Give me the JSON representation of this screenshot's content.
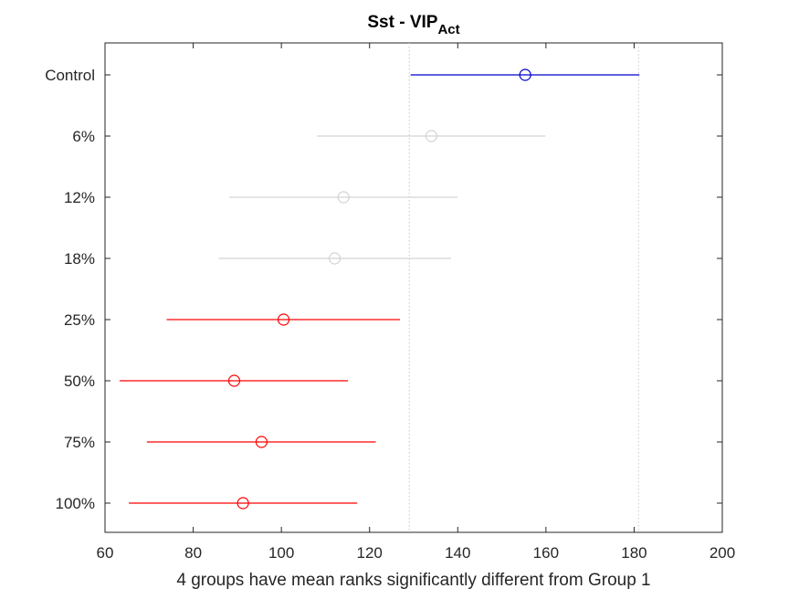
{
  "chart_data": {
    "type": "scatter",
    "title": "Sst - VIP",
    "title_subscript": "Act",
    "xlabel": "4 groups have mean ranks significantly different from Group 1",
    "ylabel": "",
    "xlim": [
      60,
      200
    ],
    "xticks": [
      "60",
      "80",
      "100",
      "120",
      "140",
      "160",
      "180",
      "200"
    ],
    "grid": false,
    "reference_lines_x": [
      129.0,
      181.0
    ],
    "categories": [
      "Control",
      "6%",
      "12%",
      "18%",
      "25%",
      "50%",
      "75%",
      "100%"
    ],
    "series": [
      {
        "points": [
          {
            "label": "Control",
            "mean": 155.3,
            "low": 129.3,
            "high": 181.2,
            "status": "reference"
          },
          {
            "label": "6%",
            "mean": 134.0,
            "low": 108.0,
            "high": 159.9,
            "status": "not-significant"
          },
          {
            "label": "12%",
            "mean": 114.1,
            "low": 88.2,
            "high": 140.0,
            "status": "not-significant"
          },
          {
            "label": "18%",
            "mean": 112.1,
            "low": 85.8,
            "high": 138.5,
            "status": "not-significant"
          },
          {
            "label": "25%",
            "mean": 100.5,
            "low": 74.0,
            "high": 126.9,
            "status": "significant"
          },
          {
            "label": "50%",
            "mean": 89.3,
            "low": 63.3,
            "high": 115.1,
            "status": "significant"
          },
          {
            "label": "75%",
            "mean": 95.5,
            "low": 69.5,
            "high": 121.4,
            "status": "significant"
          },
          {
            "label": "100%",
            "mean": 91.3,
            "low": 65.4,
            "high": 117.2,
            "status": "significant"
          }
        ]
      }
    ],
    "colors": {
      "reference": "#0000cc",
      "not-significant": "#d3d3d3",
      "significant": "#ff0000",
      "reference_line": "#c8c8c8",
      "axes": "#262626"
    }
  }
}
